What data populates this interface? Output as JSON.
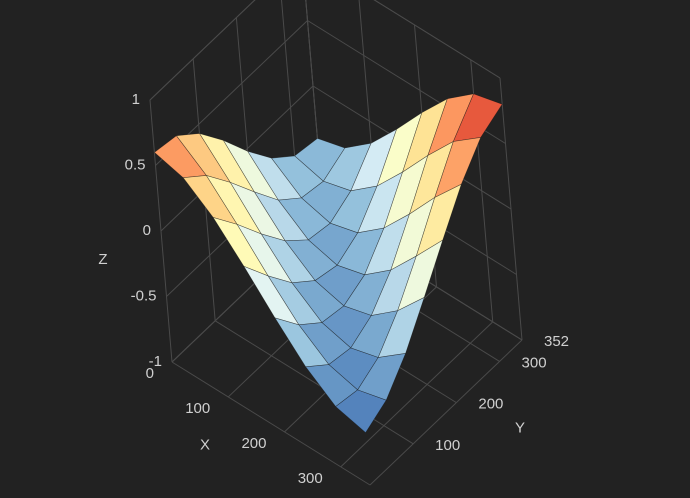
{
  "chart_data": {
    "type": "surface",
    "x": [
      0,
      50,
      100,
      150,
      200,
      250,
      300,
      352
    ],
    "y": [
      0,
      50,
      100,
      150,
      200,
      250,
      300,
      352
    ],
    "z": [
      [
        0.6,
        0.57,
        0.43,
        0.22,
        -0.02,
        -0.23,
        -0.37,
        -0.4
      ],
      [
        0.54,
        0.4,
        0.19,
        -0.04,
        -0.26,
        -0.4,
        -0.43,
        -0.34
      ],
      [
        0.37,
        0.16,
        -0.07,
        -0.28,
        -0.43,
        -0.46,
        -0.37,
        -0.17
      ],
      [
        0.13,
        -0.1,
        -0.31,
        -0.45,
        -0.49,
        -0.4,
        -0.2,
        0.07
      ],
      [
        -0.13,
        -0.34,
        -0.48,
        -0.51,
        -0.43,
        -0.23,
        0.04,
        0.33
      ],
      [
        -0.37,
        -0.51,
        -0.54,
        -0.45,
        -0.26,
        0.01,
        0.3,
        0.57
      ],
      [
        -0.54,
        -0.57,
        -0.48,
        -0.28,
        -0.02,
        0.27,
        0.54,
        0.74
      ],
      [
        -0.6,
        -0.51,
        -0.31,
        -0.04,
        0.24,
        0.51,
        0.71,
        0.8
      ]
    ],
    "xlim": [
      0,
      352
    ],
    "ylim": [
      0,
      352
    ],
    "zlim": [
      -1,
      1
    ],
    "xticks": [
      0,
      100,
      200,
      300
    ],
    "yticks": [
      100,
      200,
      300,
      352
    ],
    "zticks": [
      -1,
      -0.5,
      0,
      0.5,
      1
    ],
    "xlabel": "X",
    "ylabel": "Y",
    "zlabel": "Z",
    "colorscale": [
      "#4575b4",
      "#91bfdb",
      "#e0f3f8",
      "#ffffbf",
      "#fee090",
      "#fc8d59",
      "#d73027"
    ],
    "grid": true
  }
}
